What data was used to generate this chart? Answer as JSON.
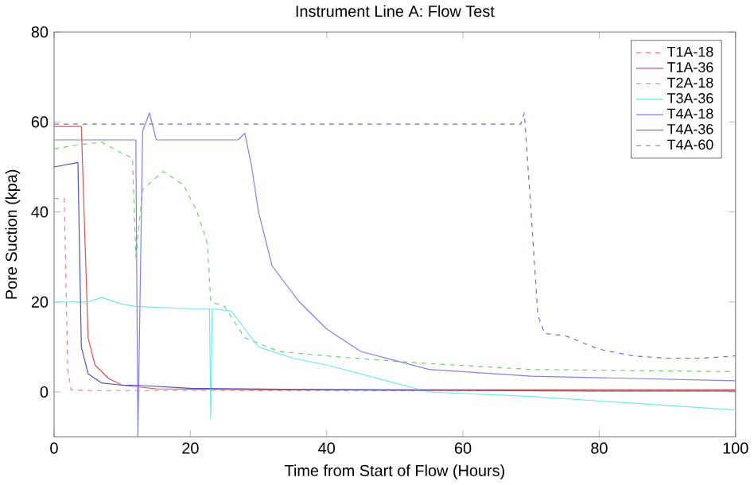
{
  "chart_data": {
    "type": "line",
    "title": "Instrument Line A: Flow Test",
    "xlabel": "Time from Start of Flow (Hours)",
    "ylabel": "Pore Suction (kpa)",
    "xlim": [
      0,
      100
    ],
    "ylim": [
      -10,
      80
    ],
    "xticks": [
      0,
      20,
      40,
      60,
      80,
      100
    ],
    "yticks": [
      0,
      20,
      40,
      60,
      80
    ],
    "grid": false,
    "legend": "top right",
    "series": [
      {
        "name": "T1A-18",
        "color": "#f08080",
        "line_style": "dashed",
        "x": [
          0,
          1.5,
          2,
          2.5,
          5,
          20,
          40,
          60,
          80,
          100
        ],
        "values": [
          43,
          43,
          5,
          0.5,
          0.3,
          0.3,
          0.3,
          0.3,
          0.3,
          0.3
        ]
      },
      {
        "name": "T1A-36",
        "color": "#e05050",
        "line_style": "solid",
        "x": [
          0,
          3.8,
          4,
          5,
          6,
          8,
          10,
          15,
          30,
          50,
          70,
          90,
          100
        ],
        "values": [
          59,
          59,
          59,
          12,
          6,
          3,
          1.5,
          0.7,
          0.5,
          0.5,
          0.5,
          0.5,
          0.5
        ]
      },
      {
        "name": "T2A-18",
        "color": "#70d070",
        "line_style": "dashed",
        "x": [
          0,
          4,
          7,
          10,
          11.5,
          12,
          13,
          16,
          19,
          21,
          22.5,
          23,
          25,
          28,
          33,
          40,
          53,
          70,
          100
        ],
        "values": [
          54,
          55,
          55.5,
          53,
          52,
          30,
          45,
          49,
          46,
          40,
          33,
          20,
          19,
          12,
          9,
          8,
          6.5,
          5,
          4.5
        ]
      },
      {
        "name": "T3A-36",
        "color": "#70e8f0",
        "line_style": "solid",
        "x": [
          0,
          5,
          7,
          10,
          12,
          20,
          22.8,
          23,
          23.2,
          26,
          28,
          30,
          35,
          40,
          50,
          55,
          70,
          80,
          90,
          100
        ],
        "values": [
          20,
          20,
          21,
          19.5,
          19,
          18.5,
          18.5,
          -6,
          18.5,
          18,
          14,
          10,
          7.5,
          6,
          2,
          0,
          -1,
          -2,
          -3,
          -4
        ]
      },
      {
        "name": "T4A-18",
        "color": "#8080f0",
        "line_style": "solid",
        "x": [
          0,
          11.8,
          12,
          12.3,
          13,
          14,
          15,
          27,
          28,
          29,
          30,
          32,
          36,
          40,
          45,
          50,
          55,
          70,
          85,
          100
        ],
        "values": [
          56,
          56,
          56,
          -10,
          58,
          62,
          56,
          56,
          57.5,
          50,
          40,
          28,
          20,
          14,
          9,
          7,
          5,
          3.5,
          3,
          2.5
        ]
      },
      {
        "name": "T4A-36",
        "color": "#5050c0",
        "line_style": "solid",
        "x": [
          0,
          3.5,
          4,
          5,
          7,
          10,
          12,
          20,
          40,
          60,
          80,
          100
        ],
        "values": [
          50,
          51,
          10,
          4,
          2,
          1.5,
          1.5,
          0.8,
          0.5,
          0.3,
          0.2,
          0.2
        ]
      },
      {
        "name": "T4A-60",
        "color": "#7070d0",
        "line_style": "dashed",
        "x": [
          0,
          10,
          30,
          50,
          68.5,
          69,
          70,
          71,
          72,
          75,
          80,
          85,
          90,
          95,
          100
        ],
        "values": [
          59.5,
          59.5,
          59.5,
          59.5,
          59.5,
          62,
          40,
          17,
          13,
          12.5,
          9.5,
          8,
          7.5,
          7.5,
          8
        ]
      }
    ]
  }
}
